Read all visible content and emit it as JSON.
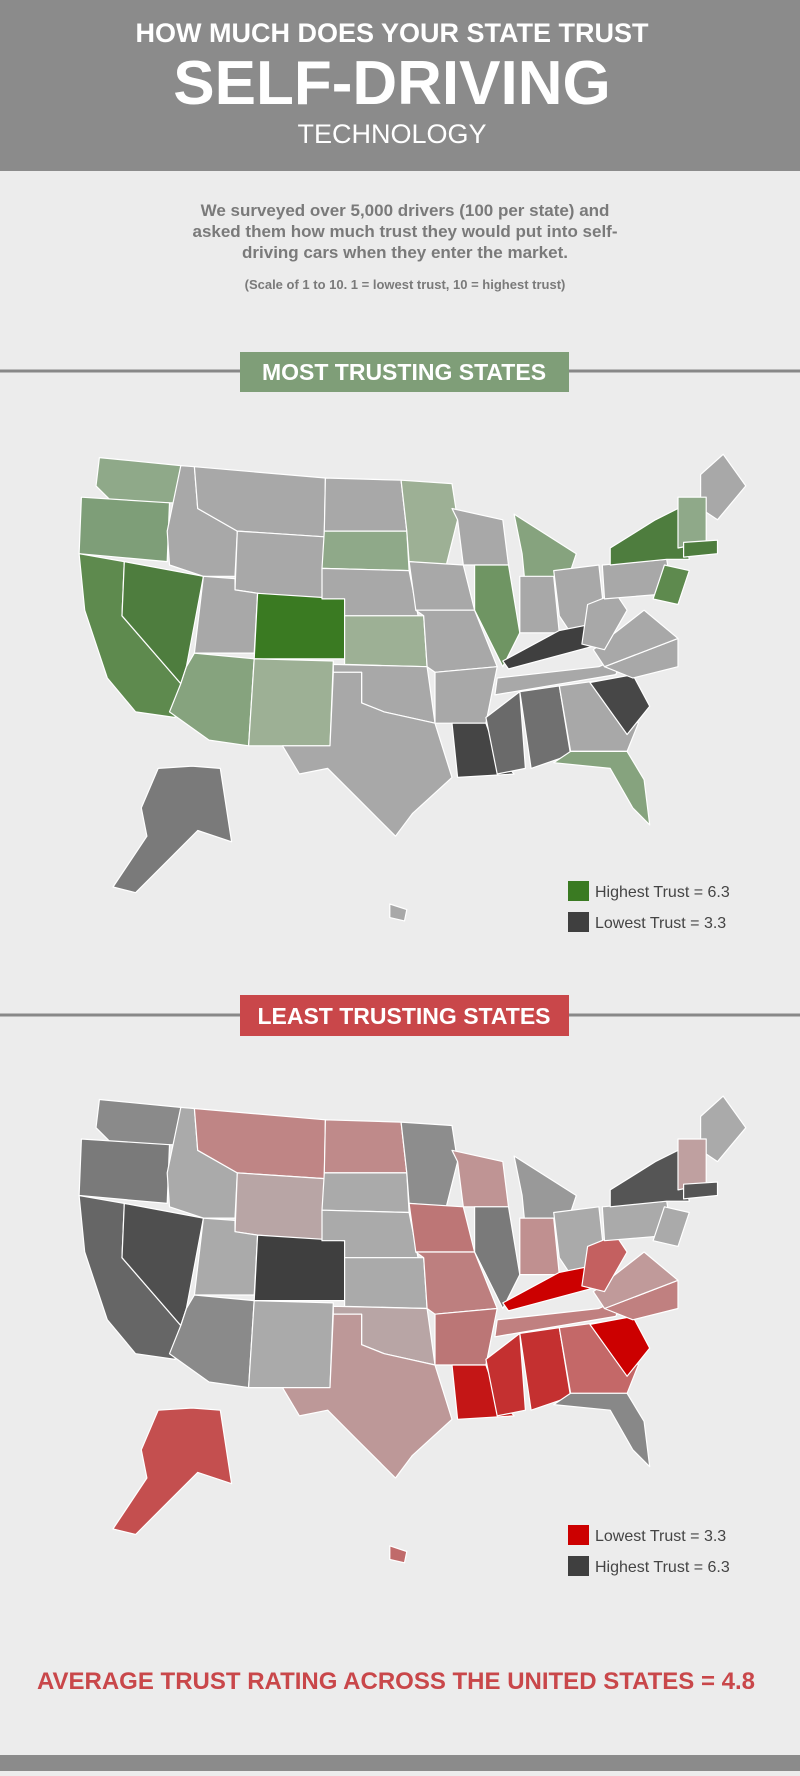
{
  "header": {
    "line1": "HOW MUCH DOES YOUR STATE TRUST",
    "title": "SELF-DRIVING",
    "line3": "TECHNOLOGY"
  },
  "intro": {
    "lines": [
      "We surveyed over 5,000 drivers (100 per state) and",
      "asked them how much trust they would put into self-",
      "driving cars when they enter the market."
    ],
    "note": "(Scale of 1 to 10. 1 = lowest trust, 10 = highest trust)"
  },
  "sections": [
    {
      "title": "MOST TRUSTING STATES",
      "legend": [
        "Highest Trust = 6.3",
        "Lowest Trust = 3.3"
      ]
    },
    {
      "title": "LEAST TRUSTING STATES",
      "legend": [
        "Lowest Trust = 3.3",
        "Highest Trust = 6.3"
      ]
    }
  ],
  "footer": {
    "text": "AVERAGE TRUST RATING ACROSS THE UNITED STATES = 4.8"
  }
}
